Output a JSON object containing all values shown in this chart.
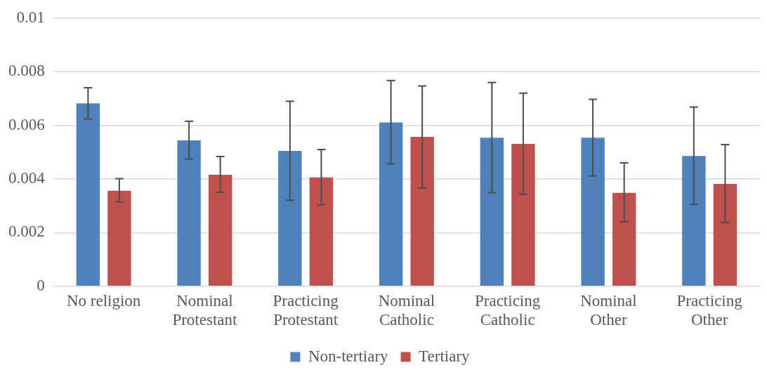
{
  "chart_data": {
    "type": "bar",
    "categories": [
      "No religion",
      "Nominal Protestant",
      "Practicing Protestant",
      "Nominal Catholic",
      "Practicing Catholic",
      "Nominal Other",
      "Practicing Other"
    ],
    "series": [
      {
        "name": "Non-tertiary",
        "color": "#4f81bd",
        "values": [
          0.00682,
          0.00544,
          0.00505,
          0.00611,
          0.00554,
          0.00554,
          0.00486
        ],
        "errors": [
          [
            0.00624,
            0.0074
          ],
          [
            0.00474,
            0.00615
          ],
          [
            0.00321,
            0.0069
          ],
          [
            0.00456,
            0.00767
          ],
          [
            0.00349,
            0.0076
          ],
          [
            0.00411,
            0.00697
          ],
          [
            0.00305,
            0.00668
          ]
        ]
      },
      {
        "name": "Tertiary",
        "color": "#c0504d",
        "values": [
          0.00356,
          0.00416,
          0.00406,
          0.00557,
          0.00531,
          0.00348,
          0.00382
        ],
        "errors": [
          [
            0.00314,
            0.00401
          ],
          [
            0.0035,
            0.00484
          ],
          [
            0.00304,
            0.0051
          ],
          [
            0.00366,
            0.00747
          ],
          [
            0.00343,
            0.0072
          ],
          [
            0.0024,
            0.0046
          ],
          [
            0.00238,
            0.00528
          ]
        ]
      }
    ],
    "ylim": [
      0,
      0.01
    ],
    "yticks": [
      0,
      0.002,
      0.004,
      0.006,
      0.008,
      0.01
    ],
    "grid": "y",
    "legend": "bottom"
  }
}
